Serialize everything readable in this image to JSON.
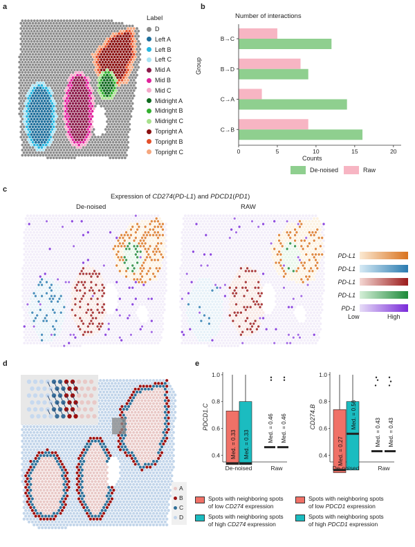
{
  "panels": {
    "a": "a",
    "b": "b",
    "c": "c",
    "d": "d",
    "e": "e"
  },
  "panel_a": {
    "legend_title": "Label",
    "labels": [
      {
        "name": "D",
        "color": "#8c8c8c"
      },
      {
        "name": "Left A",
        "color": "#1f6f9c"
      },
      {
        "name": "Left B",
        "color": "#29b6e0"
      },
      {
        "name": "Left C",
        "color": "#a9e3f3"
      },
      {
        "name": "Mid A",
        "color": "#8b1a4a"
      },
      {
        "name": "Mid B",
        "color": "#e0229b"
      },
      {
        "name": "Mid C",
        "color": "#f4a8c9"
      },
      {
        "name": "Midright A",
        "color": "#0f6b1f"
      },
      {
        "name": "Midright B",
        "color": "#33b02f"
      },
      {
        "name": "Midright C",
        "color": "#a7e08c"
      },
      {
        "name": "Topright A",
        "color": "#8a1010"
      },
      {
        "name": "Topright B",
        "color": "#e4502a"
      },
      {
        "name": "Topright C",
        "color": "#f5a77f"
      }
    ]
  },
  "panel_b": {
    "title": "Number of interactions",
    "ylabel": "Group",
    "xlabel": "Counts",
    "legend": [
      "De-noised",
      "Raw"
    ],
    "colors": {
      "denoised": "#8fcf8f",
      "raw": "#f7b5c3"
    }
  },
  "chart_data": {
    "type": "bar",
    "orientation": "horizontal",
    "title": "Number of interactions",
    "xlabel": "Counts",
    "ylabel": "Group",
    "categories": [
      "B→C",
      "B→D",
      "C→A",
      "C→B"
    ],
    "series": [
      {
        "name": "De-noised",
        "values": [
          12,
          9,
          14,
          16
        ]
      },
      {
        "name": "Raw",
        "values": [
          5,
          8,
          3,
          9
        ]
      }
    ],
    "xlim": [
      0,
      21
    ],
    "xticks": [
      0,
      5,
      10,
      15,
      20
    ],
    "legend_position": "bottom"
  },
  "panel_c": {
    "title_prefix": "Expression of ",
    "gene1": "CD274",
    "gene1_alias": "PD-L1",
    "gene2": "PDCD1",
    "gene2_alias": "PD1",
    "and": " and ",
    "left_title": "De-noised",
    "right_title": "RAW",
    "gradients": [
      {
        "label": "PD-L1",
        "from": "#fbe9d2",
        "to": "#d9731f"
      },
      {
        "label": "PD-L1",
        "from": "#d6eaf5",
        "to": "#2a7bb0"
      },
      {
        "label": "PD-L1",
        "from": "#f4d7d3",
        "to": "#9b1b1b"
      },
      {
        "label": "PD-L1",
        "from": "#d5efd8",
        "to": "#1e8a3a"
      },
      {
        "label": "PD-1",
        "from": "#e6dcf7",
        "to": "#7a2bd9"
      }
    ],
    "low": "Low",
    "high": "High"
  },
  "panel_d": {
    "legend": [
      {
        "name": "A",
        "color": "#e9c9c7"
      },
      {
        "name": "B",
        "color": "#9b1111"
      },
      {
        "name": "C",
        "color": "#2f6f97"
      },
      {
        "name": "D",
        "color": "#c2d5ea"
      }
    ]
  },
  "panel_e": {
    "left": {
      "ylabel": "PDCD1.C",
      "yticks": [
        "1.0",
        "0.8",
        "0.6",
        "0.4"
      ],
      "groups": [
        "De-noised",
        "Raw"
      ],
      "medians": [
        "Med. = 0.33",
        "Med. = 0.33",
        "Med. = 0.46",
        "Med. = 0.46"
      ],
      "legend": [
        {
          "prefix": "Spots with neighboring spots",
          "line2a": "of low ",
          "gene": "CD274",
          "line2b": " expression",
          "color": "#f07167"
        },
        {
          "prefix": "Spots with neighboring spots",
          "line2a": "of high ",
          "gene": "CD274",
          "line2b": " expression",
          "color": "#1bbcc0"
        }
      ]
    },
    "right": {
      "ylabel": "CD274.B",
      "yticks": [
        "1.0",
        "0.8",
        "0.6",
        "0.4"
      ],
      "groups": [
        "De-noised",
        "Raw"
      ],
      "medians": [
        "Med. = 0.27",
        "Med. = 0.56",
        "Med. = 0.43",
        "Med. = 0.43"
      ],
      "legend": [
        {
          "prefix": "Spots with neighboring spots",
          "line2a": "of low ",
          "gene": "PDCD1",
          "line2b": " expression",
          "color": "#f07167"
        },
        {
          "prefix": "Spots with neighboring spots",
          "line2a": "of high ",
          "gene": "PDCD1",
          "line2b": " expression",
          "color": "#1bbcc0"
        }
      ]
    }
  }
}
